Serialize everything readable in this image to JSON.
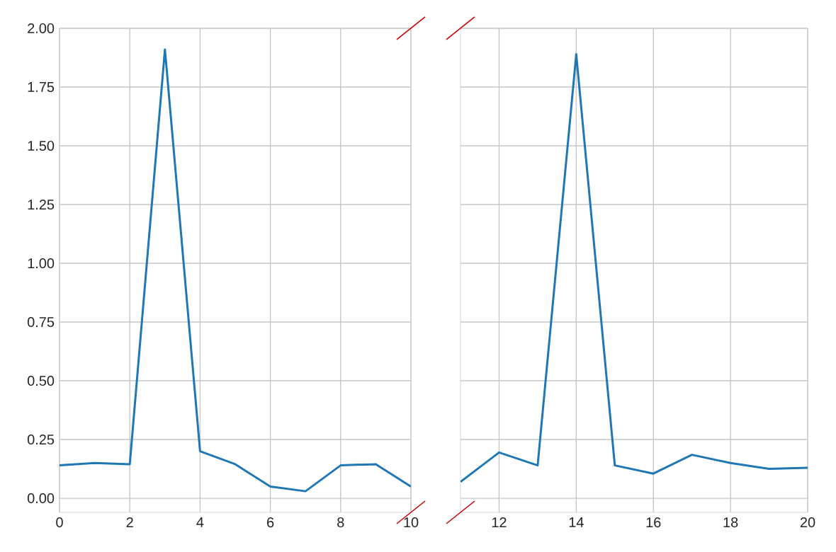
{
  "chart_data": [
    {
      "type": "line",
      "x": [
        0,
        1,
        2,
        3,
        4,
        5,
        6,
        7,
        8,
        9,
        10
      ],
      "values": [
        0.14,
        0.15,
        0.145,
        1.91,
        0.2,
        0.145,
        0.05,
        0.03,
        0.14,
        0.145,
        0.05
      ],
      "color": "#1f77b4",
      "xlim": [
        0,
        10
      ],
      "ylim": [
        -0.06,
        2.0
      ],
      "xticks": [
        0,
        2,
        4,
        6,
        8,
        10
      ],
      "yticks": [
        {
          "value": 0,
          "label": "0.00"
        },
        {
          "value": 0.25,
          "label": "0.25"
        },
        {
          "value": 0.5,
          "label": "0.50"
        },
        {
          "value": 0.75,
          "label": "0.75"
        },
        {
          "value": 1,
          "label": "1.00"
        },
        {
          "value": 1.25,
          "label": "1.25"
        },
        {
          "value": 1.5,
          "label": "1.50"
        },
        {
          "value": 1.75,
          "label": "1.75"
        },
        {
          "value": 2,
          "label": "2.00"
        }
      ],
      "grid": true
    },
    {
      "type": "line",
      "x": [
        11,
        12,
        13,
        14,
        15,
        16,
        17,
        18,
        19,
        20
      ],
      "values": [
        0.07,
        0.195,
        0.14,
        1.89,
        0.14,
        0.105,
        0.185,
        0.15,
        0.125,
        0.13
      ],
      "color": "#1f77b4",
      "xlim": [
        11,
        20
      ],
      "ylim": [
        -0.06,
        2.0
      ],
      "xticks": [
        12,
        14,
        16,
        18,
        20
      ],
      "yticks": [
        {
          "value": 0,
          "label": null
        },
        {
          "value": 0.25,
          "label": null
        },
        {
          "value": 0.5,
          "label": null
        },
        {
          "value": 0.75,
          "label": null
        },
        {
          "value": 1,
          "label": null
        },
        {
          "value": 1.25,
          "label": null
        },
        {
          "value": 1.5,
          "label": null
        },
        {
          "value": 1.75,
          "label": null
        },
        {
          "value": 2,
          "label": null
        }
      ],
      "tick_labels": "x",
      "grid": true
    }
  ]
}
